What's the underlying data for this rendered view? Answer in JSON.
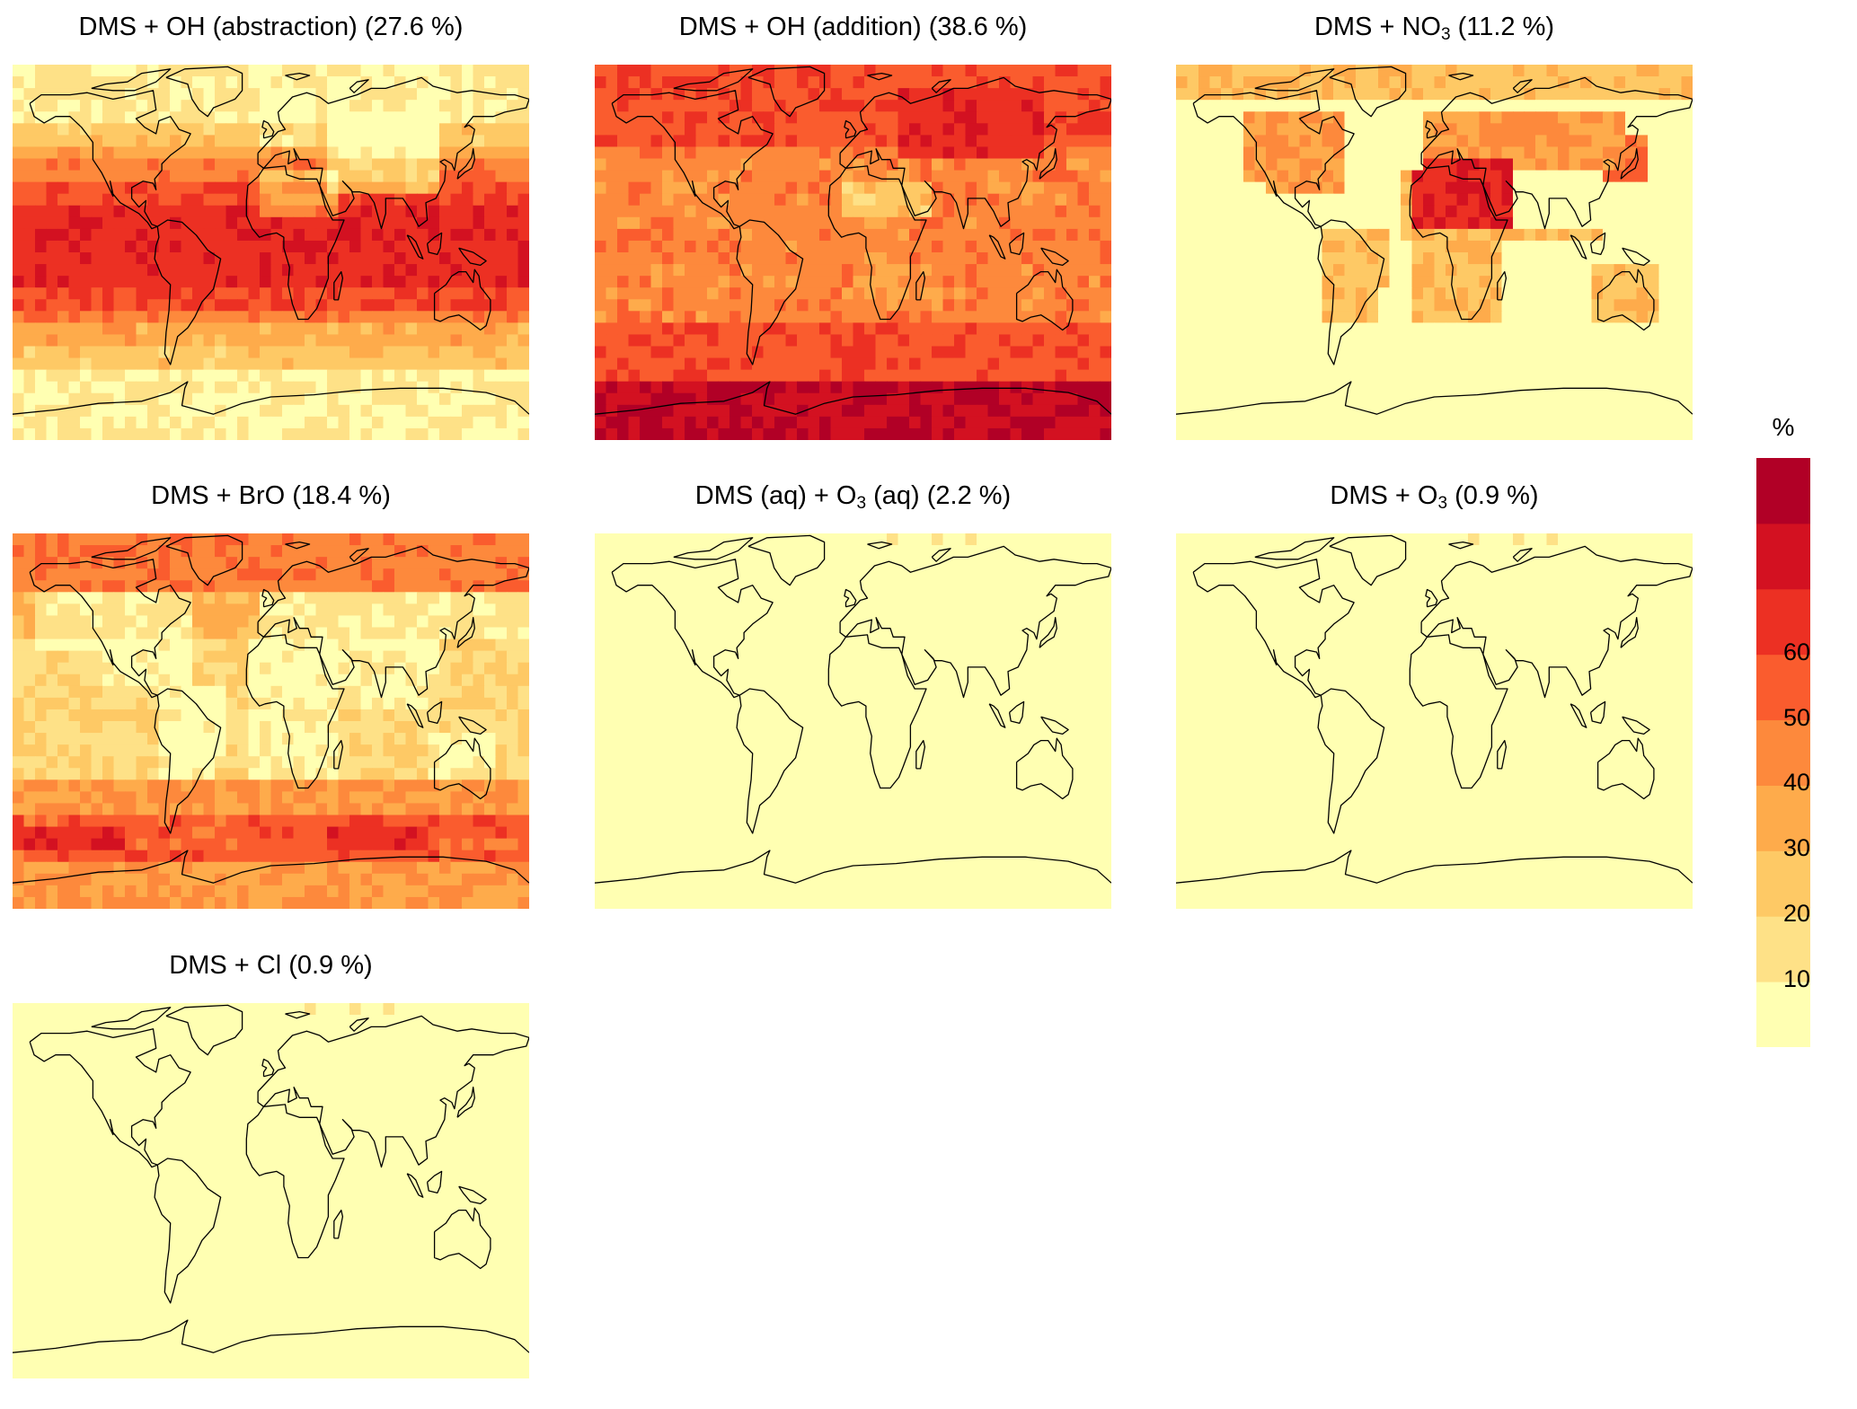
{
  "palette": [
    "#ffffb2",
    "#fee187",
    "#fec965",
    "#feab4b",
    "#fd893c",
    "#fa5c2e",
    "#ec3023",
    "#d31121",
    "#b10026"
  ],
  "panels": [
    {
      "name": "panel-oh-abstraction",
      "title_main": "DMS + OH (abstraction) (27.6 %)",
      "title_pre": "",
      "title_sub": "",
      "title_post": "",
      "pattern": "oh-abstraction"
    },
    {
      "name": "panel-oh-addition",
      "title_main": "DMS + OH (addition) (38.6 %)",
      "title_pre": "",
      "title_sub": "",
      "title_post": "",
      "pattern": "oh-addition"
    },
    {
      "name": "panel-no3",
      "title_main": "",
      "title_pre": "DMS + NO",
      "title_sub": "3",
      "title_post": " (11.2 %)",
      "pattern": "no3"
    },
    {
      "name": "panel-bro",
      "title_main": "DMS + BrO (18.4 %)",
      "title_pre": "",
      "title_sub": "",
      "title_post": "",
      "pattern": "bro"
    },
    {
      "name": "panel-o3-aq",
      "title_main": "",
      "title_pre": "DMS (aq) + O",
      "title_sub": "3",
      "title_post": " (aq) (2.2 %)",
      "pattern": "low"
    },
    {
      "name": "panel-o3",
      "title_main": "",
      "title_pre": "DMS + O",
      "title_sub": "3",
      "title_post": " (0.9 %)",
      "pattern": "low"
    },
    {
      "name": "panel-cl",
      "title_main": "DMS + Cl (0.9 %)",
      "title_pre": "",
      "title_sub": "",
      "title_post": "",
      "pattern": "low"
    }
  ],
  "legend": {
    "title": "%",
    "ticks": [
      "10",
      "20",
      "30",
      "40",
      "50",
      "60"
    ],
    "colors": [
      "#ffffb2",
      "#fee187",
      "#fec965",
      "#feab4b",
      "#fd893c",
      "#fa5c2e",
      "#ec3023",
      "#d31121",
      "#b10026"
    ]
  }
}
